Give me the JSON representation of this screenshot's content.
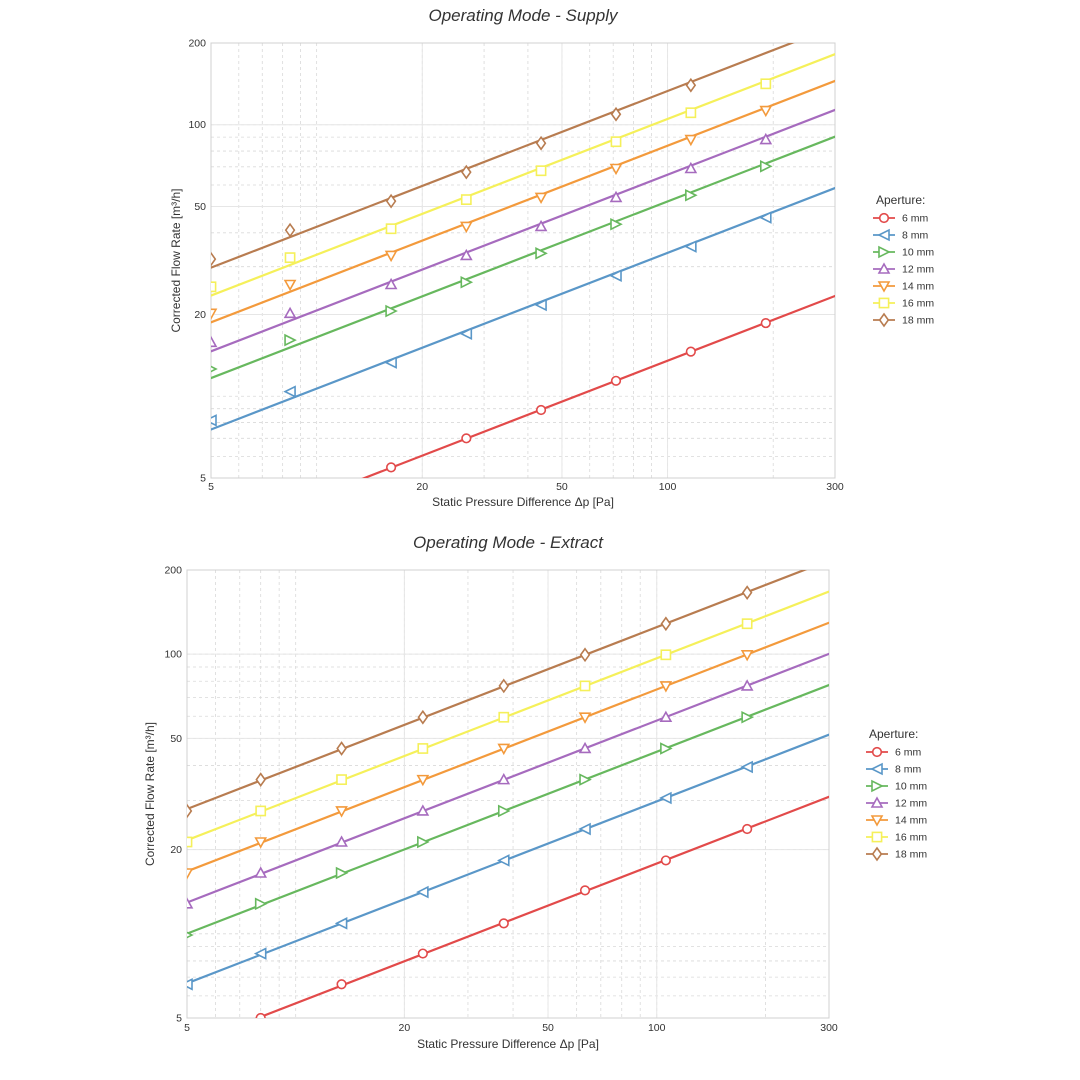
{
  "chart_data": [
    {
      "type": "line",
      "title": "Operating Mode - Supply",
      "xlabel": "Static Pressure Difference Δp [Pa]",
      "ylabel": "Corrected Flow Rate [m³/h]",
      "xscale": "log",
      "yscale": "log",
      "xlim": [
        5,
        300
      ],
      "ylim": [
        5,
        200
      ],
      "xticks": [
        5,
        20,
        50,
        100,
        300
      ],
      "yticks": [
        5,
        20,
        50,
        100,
        200
      ],
      "grid": true,
      "legend_title": "Aperture:",
      "legend_position": "right",
      "series": [
        {
          "name": "6 mm",
          "color": "#e24a4a",
          "marker": "circle",
          "exponent": 0.5,
          "x": [
            16.3,
            26.7,
            43.6,
            71.3,
            116.5,
            190.5
          ],
          "y": [
            5.47,
            7.0,
            8.9,
            11.4,
            14.6,
            18.6
          ]
        },
        {
          "name": "8 mm",
          "color": "#5a97c8",
          "marker": "triangle-left",
          "exponent": 0.5,
          "x": [
            5,
            8.4,
            16.3,
            26.7,
            43.6,
            71.3,
            116.5,
            190.5
          ],
          "y": [
            8.15,
            10.4,
            13.3,
            17.0,
            21.7,
            27.8,
            35.6,
            45.5
          ]
        },
        {
          "name": "10 mm",
          "color": "#67b85e",
          "marker": "triangle-right",
          "exponent": 0.5,
          "x": [
            5,
            8.4,
            16.3,
            26.7,
            43.6,
            71.3,
            116.5,
            190.5
          ],
          "y": [
            12.6,
            16.1,
            20.6,
            26.3,
            33.6,
            43.0,
            55.0,
            70.3
          ]
        },
        {
          "name": "12 mm",
          "color": "#a66bbe",
          "marker": "triangle-up",
          "exponent": 0.5,
          "x": [
            5,
            8.4,
            16.3,
            26.7,
            43.6,
            71.3,
            116.5,
            190.5
          ],
          "y": [
            15.8,
            20.2,
            25.8,
            33.0,
            42.2,
            54.0,
            69.0,
            88.2
          ]
        },
        {
          "name": "14 mm",
          "color": "#f39a3c",
          "marker": "triangle-down",
          "exponent": 0.5,
          "x": [
            5,
            8.4,
            16.3,
            26.7,
            43.6,
            71.3,
            116.5,
            190.5
          ],
          "y": [
            20.2,
            25.8,
            33.0,
            42.2,
            54.0,
            69.0,
            88.2,
            112.8
          ]
        },
        {
          "name": "16 mm",
          "color": "#f5f05a",
          "marker": "square",
          "exponent": 0.5,
          "x": [
            5,
            8.4,
            16.3,
            26.7,
            43.6,
            71.3,
            116.5,
            190.5
          ],
          "y": [
            25.3,
            32.4,
            41.4,
            53.0,
            67.7,
            86.6,
            110.7,
            141.5
          ]
        },
        {
          "name": "18 mm",
          "color": "#b87c50",
          "marker": "diamond",
          "exponent": 0.5,
          "x": [
            5,
            8.4,
            16.3,
            26.7,
            43.6,
            71.3,
            116.5
          ],
          "y": [
            32.0,
            40.9,
            52.3,
            66.9,
            85.5,
            109.3,
            139.8
          ]
        }
      ]
    },
    {
      "type": "line",
      "title": "Operating Mode - Extract",
      "xlabel": "Static Pressure Difference Δp [Pa]",
      "ylabel": "Corrected Flow Rate [m³/h]",
      "xscale": "log",
      "yscale": "log",
      "xlim": [
        5,
        300
      ],
      "ylim": [
        5,
        200
      ],
      "xticks": [
        5,
        20,
        50,
        100,
        300
      ],
      "yticks": [
        5,
        20,
        50,
        100,
        200
      ],
      "grid": true,
      "legend_title": "Aperture:",
      "legend_position": "right",
      "series": [
        {
          "name": "6 mm",
          "color": "#e24a4a",
          "marker": "circle",
          "exponent": 0.5,
          "x": [
            8.0,
            13.4,
            22.5,
            37.7,
            63.3,
            106.0,
            178.0
          ],
          "y": [
            5.0,
            6.6,
            8.5,
            10.9,
            14.3,
            18.3,
            23.7
          ]
        },
        {
          "name": "8 mm",
          "color": "#5a97c8",
          "marker": "triangle-left",
          "exponent": 0.5,
          "x": [
            5,
            8.0,
            13.4,
            22.5,
            37.7,
            63.3,
            106.0,
            178.0
          ],
          "y": [
            6.6,
            8.5,
            10.9,
            14.1,
            18.3,
            23.7,
            30.6,
            39.5
          ]
        },
        {
          "name": "10 mm",
          "color": "#67b85e",
          "marker": "triangle-right",
          "exponent": 0.5,
          "x": [
            5,
            8.0,
            13.4,
            22.5,
            37.7,
            63.3,
            106.0,
            178.0
          ],
          "y": [
            9.9,
            12.8,
            16.5,
            21.3,
            27.5,
            35.6,
            46.0,
            59.5
          ]
        },
        {
          "name": "12 mm",
          "color": "#a66bbe",
          "marker": "triangle-up",
          "exponent": 0.5,
          "x": [
            5,
            8.0,
            13.4,
            22.5,
            37.7,
            63.3,
            106.0,
            178.0
          ],
          "y": [
            12.8,
            16.5,
            21.3,
            27.5,
            35.6,
            46.0,
            59.5,
            77.0
          ]
        },
        {
          "name": "14 mm",
          "color": "#f39a3c",
          "marker": "triangle-down",
          "exponent": 0.5,
          "x": [
            5,
            8.0,
            13.4,
            22.5,
            37.7,
            63.3,
            106.0,
            178.0
          ],
          "y": [
            16.5,
            21.3,
            27.5,
            35.6,
            46.0,
            59.5,
            77.0,
            99.5
          ]
        },
        {
          "name": "16 mm",
          "color": "#f5f05a",
          "marker": "square",
          "exponent": 0.5,
          "x": [
            5,
            8.0,
            13.4,
            22.5,
            37.7,
            63.3,
            106.0,
            178.0
          ],
          "y": [
            21.3,
            27.5,
            35.6,
            46.0,
            59.5,
            77.0,
            99.5,
            128.5
          ]
        },
        {
          "name": "18 mm",
          "color": "#b87c50",
          "marker": "diamond",
          "exponent": 0.5,
          "x": [
            5,
            8.0,
            13.4,
            22.5,
            37.7,
            63.3,
            106.0,
            178.0
          ],
          "y": [
            27.5,
            35.6,
            46.0,
            59.5,
            77.0,
            99.5,
            128.5,
            166.0
          ]
        }
      ]
    }
  ]
}
